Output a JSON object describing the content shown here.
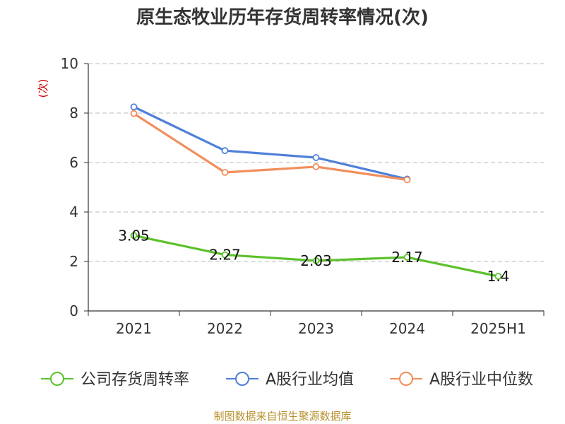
{
  "chart_data": {
    "type": "line",
    "title": "原生态牧业历年存货周转率情况(次)",
    "unit_label": "(次)",
    "categories": [
      "2021",
      "2022",
      "2023",
      "2024",
      "2025H1"
    ],
    "ylim": [
      0,
      10
    ],
    "yticks": [
      "0",
      "2",
      "4",
      "6",
      "8",
      "10"
    ],
    "grid": true,
    "legend_position": "bottom",
    "series": [
      {
        "name": "公司存货周转率",
        "color": "#5cc12b",
        "values": [
          3.05,
          2.27,
          2.03,
          2.17,
          1.4
        ],
        "labels": [
          "3.05",
          "2.27",
          "2.03",
          "2.17",
          "1.4"
        ]
      },
      {
        "name": "A股行业均值",
        "color": "#4f7fd9",
        "values": [
          8.25,
          6.48,
          6.2,
          5.33,
          null
        ],
        "labels": []
      },
      {
        "name": "A股行业中位数",
        "color": "#f28e5c",
        "values": [
          7.98,
          5.6,
          5.83,
          5.3,
          null
        ],
        "labels": []
      }
    ],
    "source": "制图数据来自恒生聚源数据库"
  }
}
